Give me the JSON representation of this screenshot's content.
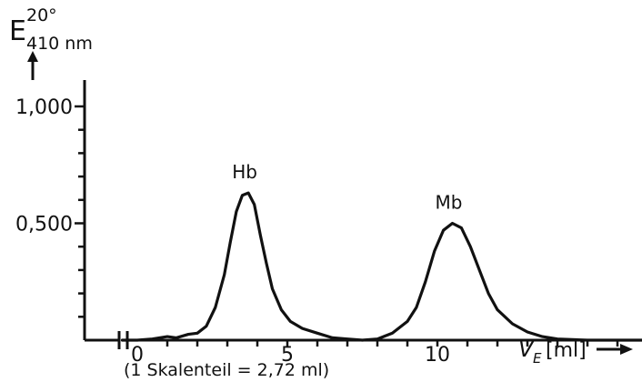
{
  "chart_data": {
    "type": "line",
    "ylabel": {
      "symbol": "E",
      "superscript": "20°",
      "subscript": "410 nm"
    },
    "xlabel": {
      "symbol": "V",
      "subscript": "E",
      "unit": "[ml]"
    },
    "x_note": "(1 Skalenteil = 2,72 ml)",
    "x_ticks": [
      "0",
      "5",
      "10"
    ],
    "y_ticks": [
      "1,000",
      "0,500"
    ],
    "xlim": [
      -0.5,
      17.7
    ],
    "ylim": [
      0,
      1.08
    ],
    "axis_break": true,
    "peaks": [
      {
        "label": "Hb",
        "x": 3.7
      },
      {
        "label": "Mb",
        "x": 10.5
      }
    ],
    "series": [
      {
        "x": [
          -0.5,
          0.0,
          0.5,
          1.0,
          1.3,
          1.7,
          2.0,
          2.3,
          2.6,
          2.9,
          3.1,
          3.3,
          3.5,
          3.7,
          3.9,
          4.1,
          4.3,
          4.5,
          4.8,
          5.1,
          5.5,
          6.0,
          6.5,
          7.0,
          7.5,
          8.0,
          8.5,
          9.0,
          9.3,
          9.6,
          9.9,
          10.2,
          10.5,
          10.8,
          11.1,
          11.4,
          11.7,
          12.0,
          12.5,
          13.0,
          13.5,
          14.0,
          15.0,
          16.0,
          17.0,
          17.7
        ],
        "y": [
          0.0,
          0.0,
          0.005,
          0.015,
          0.01,
          0.025,
          0.03,
          0.06,
          0.14,
          0.28,
          0.42,
          0.55,
          0.62,
          0.63,
          0.58,
          0.45,
          0.33,
          0.22,
          0.13,
          0.08,
          0.05,
          0.03,
          0.01,
          0.005,
          0.0,
          0.005,
          0.03,
          0.08,
          0.14,
          0.25,
          0.38,
          0.47,
          0.5,
          0.48,
          0.4,
          0.3,
          0.2,
          0.13,
          0.07,
          0.035,
          0.015,
          0.005,
          0.0,
          0.0,
          0.0,
          0.0
        ]
      }
    ]
  }
}
